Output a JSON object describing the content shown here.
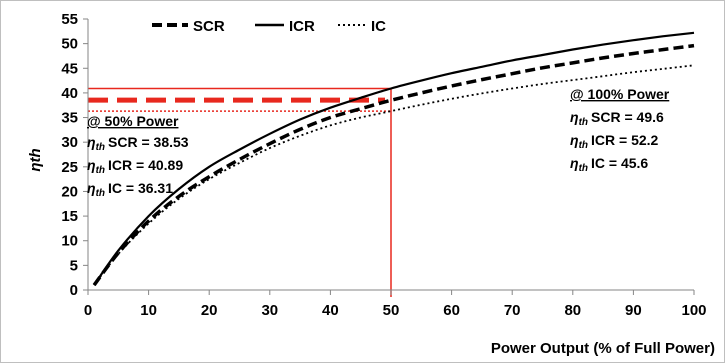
{
  "chart_data": {
    "type": "line",
    "xlabel": "Power Output (% of Full Power)",
    "ylabel_main": "η",
    "ylabel_sub": "th",
    "xlim": [
      0,
      100
    ],
    "ylim": [
      0,
      55
    ],
    "x_ticks": [
      0,
      10,
      20,
      30,
      40,
      50,
      60,
      70,
      80,
      90,
      100
    ],
    "y_ticks": [
      0,
      5,
      10,
      15,
      20,
      25,
      30,
      35,
      40,
      45,
      50,
      55
    ],
    "legend_position": "top-left",
    "series": [
      {
        "name": "SCR",
        "style": "dashed",
        "x": [
          1,
          5,
          10,
          15,
          20,
          25,
          30,
          35,
          40,
          45,
          50,
          55,
          60,
          65,
          70,
          75,
          80,
          85,
          90,
          95,
          100
        ],
        "y": [
          1.0,
          7.5,
          14.0,
          19.0,
          23.0,
          26.5,
          29.7,
          32.6,
          35.0,
          36.8,
          38.5,
          40.0,
          41.4,
          42.7,
          43.9,
          45.1,
          46.1,
          47.1,
          48.0,
          48.8,
          49.6
        ]
      },
      {
        "name": "ICR",
        "style": "solid",
        "x": [
          1,
          5,
          10,
          15,
          20,
          25,
          30,
          35,
          40,
          45,
          50,
          55,
          60,
          65,
          70,
          75,
          80,
          85,
          90,
          95,
          100
        ],
        "y": [
          1.0,
          8.0,
          15.0,
          20.5,
          25.0,
          28.5,
          31.7,
          34.6,
          37.0,
          39.0,
          40.9,
          42.5,
          44.0,
          45.3,
          46.6,
          47.7,
          48.8,
          49.8,
          50.7,
          51.5,
          52.2
        ]
      },
      {
        "name": "IC",
        "style": "dotted",
        "x": [
          1,
          5,
          10,
          15,
          20,
          25,
          30,
          35,
          40,
          45,
          50,
          55,
          60,
          65,
          70,
          75,
          80,
          85,
          90,
          95,
          100
        ],
        "y": [
          1.0,
          7.3,
          13.5,
          18.5,
          22.5,
          25.8,
          28.8,
          31.3,
          33.4,
          35.0,
          36.3,
          37.6,
          38.8,
          39.9,
          40.9,
          41.8,
          42.6,
          43.4,
          44.2,
          44.9,
          45.6
        ]
      }
    ],
    "reference_lines": {
      "vertical_x": 50,
      "horizontal_y": [
        40.89,
        38.53,
        36.31
      ],
      "color": "#e8281e"
    },
    "annotations": {
      "left": {
        "title": "@ 50% Power",
        "lines": [
          {
            "label": "SCR = 38.53"
          },
          {
            "label": "ICR = 40.89"
          },
          {
            "label": "IC = 36.31"
          }
        ]
      },
      "right": {
        "title": "@ 100% Power",
        "lines": [
          {
            "label": "SCR = 49.6"
          },
          {
            "label": "ICR = 52.2"
          },
          {
            "label": "IC = 45.6"
          }
        ]
      },
      "symbol_main": "η",
      "symbol_sub": "th"
    }
  }
}
